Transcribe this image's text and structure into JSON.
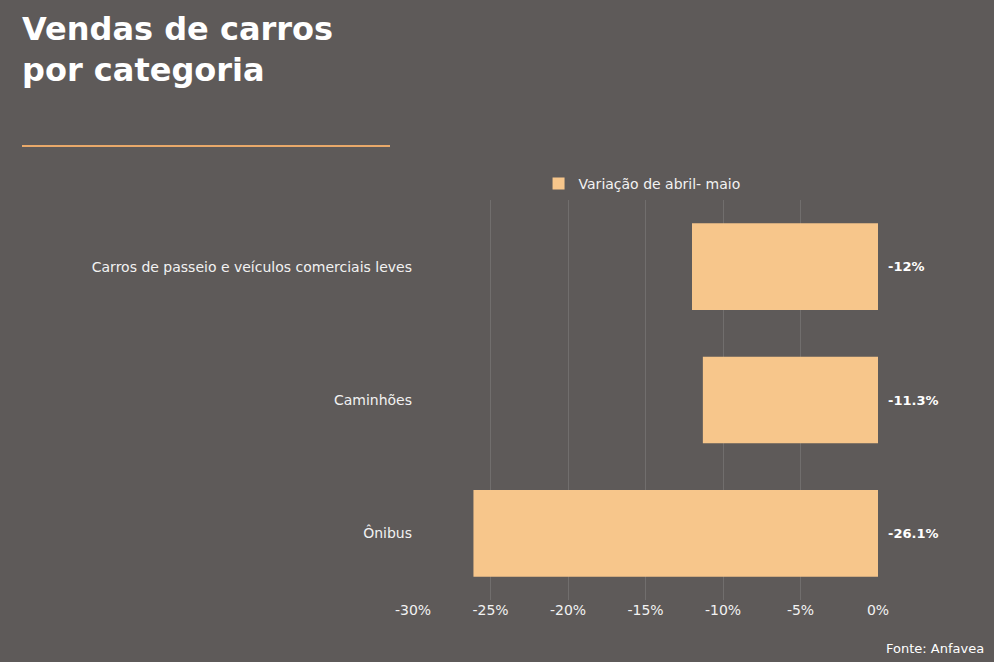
{
  "chart_data": {
    "type": "bar",
    "orientation": "horizontal",
    "title": "Vendas de carros por categoria",
    "categories": [
      "Carros de passeio e veículos comerciais leves",
      "Caminhões",
      "Ônibus"
    ],
    "series": [
      {
        "name": "Variação de abril- maio",
        "color": "#f7c68b",
        "values": [
          -12,
          -11.3,
          -26.1
        ],
        "value_labels": [
          "-12%",
          "-11.3%",
          "-26.1%"
        ]
      }
    ],
    "xlim": [
      -30,
      0
    ],
    "xticks": [
      {
        "value": -30,
        "label": "-30%"
      },
      {
        "value": -25,
        "label": "-25%"
      },
      {
        "value": -20,
        "label": "-20%"
      },
      {
        "value": -15,
        "label": "-15%"
      },
      {
        "value": -10,
        "label": "-10%"
      },
      {
        "value": -5,
        "label": "-5%"
      },
      {
        "value": 0,
        "label": "0%"
      }
    ],
    "grid": true,
    "legend": "top",
    "data_labels": true,
    "source": "Fonte: Anfavea"
  }
}
